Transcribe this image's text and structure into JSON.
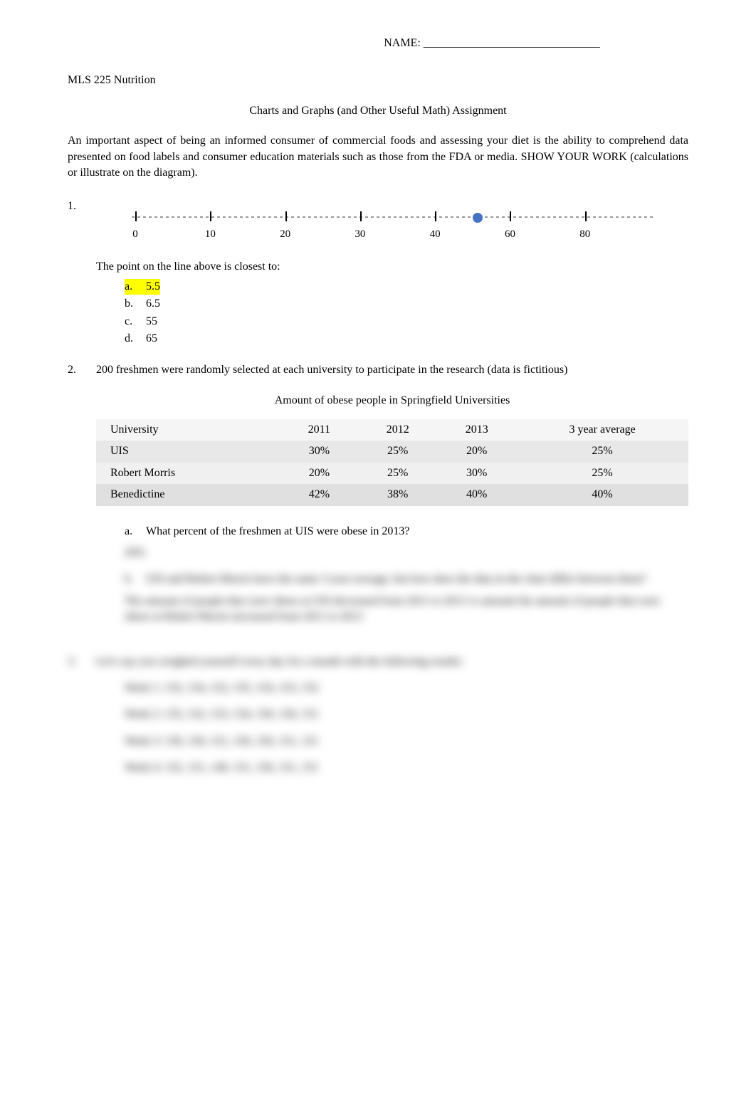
{
  "header": {
    "name_label": "NAME: _______________________________"
  },
  "course": "MLS 225 Nutrition",
  "assignment_title": "Charts and Graphs (and Other Useful Math) Assignment",
  "intro": "An important aspect of being an informed consumer of commercial foods and assessing your diet is the ability to comprehend data presented on food labels and consumer education materials such as those from the FDA or media.  SHOW YOUR WORK (calculations or illustrate on the diagram).",
  "q1": {
    "number": "1.",
    "number_line": {
      "min": 0,
      "max": 80,
      "ticks": [
        {
          "value": 0,
          "label": "0",
          "x_percent": 2
        },
        {
          "value": 10,
          "label": "10",
          "x_percent": 16
        },
        {
          "value": 20,
          "label": "20",
          "x_percent": 30
        },
        {
          "value": 30,
          "label": "30",
          "x_percent": 44
        },
        {
          "value": 40,
          "label": "40",
          "x_percent": 58
        },
        {
          "value": 60,
          "label": "60",
          "x_percent": 72
        },
        {
          "value": 80,
          "label": "80",
          "x_percent": 86
        }
      ],
      "point_x_percent": 66,
      "point_color": "#4472c4",
      "line_color": "#999999"
    },
    "prompt": "The point on the line above is closest to:",
    "answers": [
      {
        "letter": "a.",
        "value": "5.5",
        "highlighted": true
      },
      {
        "letter": "b.",
        "value": "6.5",
        "highlighted": false
      },
      {
        "letter": "c.",
        "value": "55",
        "highlighted": false
      },
      {
        "letter": "d.",
        "value": "65",
        "highlighted": false
      }
    ]
  },
  "q2": {
    "number": "2.",
    "prompt": "200 freshmen were randomly selected at each university to participate in the research (data is fictitious)",
    "table": {
      "title": "Amount of obese people in Springfield Universities",
      "columns": [
        "University",
        "2011",
        "2012",
        "2013",
        "3 year average"
      ],
      "rows": [
        [
          "UIS",
          "30%",
          "25%",
          "20%",
          "25%"
        ],
        [
          "Robert Morris",
          "20%",
          "25%",
          "30%",
          "25%"
        ],
        [
          "Benedictine",
          "42%",
          "38%",
          "40%",
          "40%"
        ]
      ],
      "header_bg": "#f5f5f5",
      "row_bg_alt1": "#e8e8e8",
      "row_bg_alt2": "#f0f0f0",
      "row_bg_alt3": "#e0e0e0"
    },
    "sub_a": {
      "letter": "a.",
      "text": "What percent of the freshmen at UIS were obese in 2013?"
    },
    "answer_a": "20%",
    "sub_b": {
      "letter": "b.",
      "text": "UIS and Robert Morris have the same 3 year average, but how does the data in the chart differ between them?"
    },
    "answer_b": "The amount of people that were obese at UIS decreased from 2011 to 2013 vs amount the amount of people that were obese at Robert Morris increased from 2011 to 2013"
  },
  "q3": {
    "number": "3.",
    "prompt": "Let's say you weighed yourself every day for a month with the following results:",
    "weeks": [
      "Week 1: 152, 154, 152, 155, 154, 153, 152",
      "Week 2: 155, 152, 153, 154, 150, 150, 151",
      "Week 3: 150, 150, 151, 150, 150, 151, 151",
      "Week 4: 152, 151, 149, 151, 150, 151, 151"
    ]
  }
}
